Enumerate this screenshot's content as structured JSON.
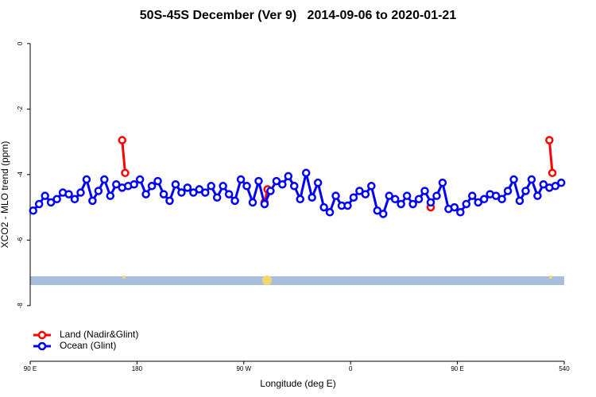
{
  "chart_data": {
    "type": "line",
    "title": "50S-45S December (Ver 9)   2014-09-06 to 2020-01-21",
    "x_label": "Longitude (deg E)",
    "y_label": "XCO2 - MLO trend (ppm)",
    "xlim": [
      90,
      540
    ],
    "ylim": [
      -9.7,
      0.36
    ],
    "xticks": [
      {
        "value": 90,
        "label": "90 E"
      },
      180,
      {
        "value": 270,
        "label": "90 W"
      },
      {
        "value": 360,
        "label": "0"
      },
      {
        "value": 450,
        "label": "90 E"
      },
      540
    ],
    "yticks": [
      0,
      -2,
      -4,
      -6,
      -8
    ],
    "legend": "bottom-left",
    "series": [
      {
        "name": "Land (Nadir&Glint)",
        "color": "#ff0000",
        "x": [
          167.5,
          170,
          230,
          287.5,
          290,
          360,
          427.5,
          480,
          527.5,
          530
        ],
        "values": [
          -2.95,
          -3.95,
          null,
          -4.85,
          -4.45,
          null,
          -5.0,
          null,
          -2.95,
          -3.95
        ]
      },
      {
        "name": "Ocean (Glint)",
        "color": "#0000ff",
        "x": [
          92.5,
          97.5,
          102.5,
          107.5,
          112.5,
          117.5,
          122.5,
          127.5,
          132.5,
          137.5,
          142.5,
          147.5,
          152.5,
          157.5,
          162.5,
          167.5,
          172.5,
          177.5,
          182.5,
          187.5,
          192.5,
          197.5,
          202.5,
          207.5,
          212.5,
          217.5,
          222.5,
          227.5,
          232.5,
          237.5,
          242.5,
          247.5,
          252.5,
          257.5,
          262.5,
          267.5,
          272.5,
          277.5,
          282.5,
          287.5,
          292.5,
          297.5,
          302.5,
          307.5,
          312.5,
          317.5,
          322.5,
          327.5,
          332.5,
          337.5,
          342.5,
          347.5,
          352.5,
          357.5,
          362.5,
          367.5,
          372.5,
          377.5,
          382.5,
          387.5,
          392.5,
          397.5,
          402.5,
          407.5,
          412.5,
          417.5,
          422.5,
          427.5,
          432.5,
          437.5,
          442.5,
          447.5,
          452.5,
          457.5,
          462.5,
          467.5,
          472.5,
          477.5,
          482.5,
          487.5,
          492.5,
          497.5,
          502.5,
          507.5,
          512.5,
          517.5,
          522.5,
          527.5,
          532.5,
          537.5
        ],
        "values": [
          -5.1,
          -4.9,
          -4.65,
          -4.85,
          -4.75,
          -4.55,
          -4.6,
          -4.75,
          -4.55,
          -4.15,
          -4.8,
          -4.5,
          -4.15,
          -4.65,
          -4.3,
          -4.4,
          -4.35,
          -4.3,
          -4.15,
          -4.6,
          -4.35,
          -4.2,
          -4.6,
          -4.8,
          -4.3,
          -4.55,
          -4.4,
          -4.55,
          -4.45,
          -4.55,
          -4.35,
          -4.7,
          -4.35,
          -4.6,
          -4.8,
          -4.15,
          -4.35,
          -4.85,
          -4.2,
          -4.9,
          -4.5,
          -4.2,
          -4.3,
          -4.05,
          -4.35,
          -4.75,
          -3.95,
          -4.7,
          -4.25,
          -5.0,
          -5.15,
          -4.65,
          -4.95,
          -4.95,
          -4.7,
          -4.5,
          -4.6,
          -4.35,
          -5.1,
          -5.2,
          -4.65,
          -4.75,
          -4.9,
          -4.65,
          -4.9,
          -4.75,
          -4.5,
          -4.85,
          -4.65,
          -4.25,
          -5.05,
          -5.0,
          -5.15,
          -4.9,
          -4.65,
          -4.85,
          -4.75,
          -4.6,
          -4.65,
          -4.75,
          -4.5,
          -4.15,
          -4.8,
          -4.5,
          -4.15,
          -4.65,
          -4.3,
          -4.4,
          -4.35,
          -4.25
        ]
      }
    ]
  }
}
